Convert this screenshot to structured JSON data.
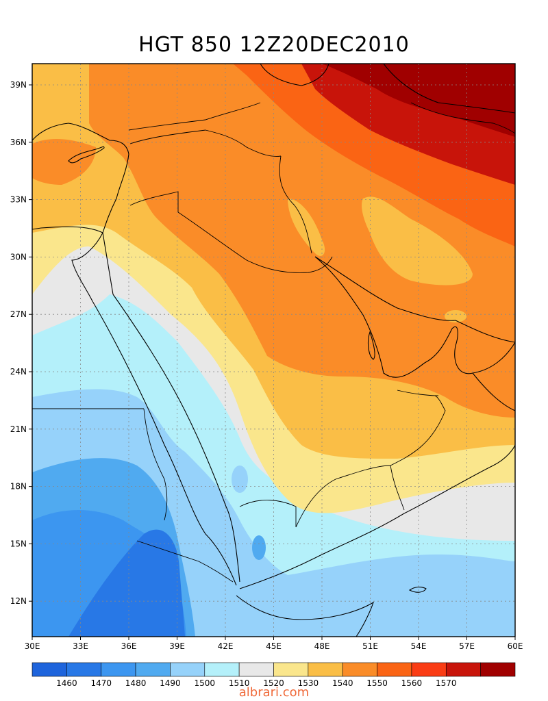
{
  "title": "HGT 850 12Z20DEC2010",
  "lon_labels": [
    "30E",
    "33E",
    "36E",
    "39E",
    "42E",
    "45E",
    "48E",
    "51E",
    "54E",
    "57E",
    "60E"
  ],
  "lat_labels": [
    "39N",
    "36N",
    "33N",
    "30N",
    "27N",
    "24N",
    "21N",
    "18N",
    "15N",
    "12N"
  ],
  "colorbar": {
    "colors": [
      "#1e64dc",
      "#2878e6",
      "#3c96f0",
      "#50aaf0",
      "#96d2fa",
      "#b4f0fa",
      "#e8e8e8",
      "#fae68c",
      "#fabe46",
      "#fa8c28",
      "#fa6414",
      "#fa3c14",
      "#c8140a",
      "#a00000"
    ],
    "labels": [
      "1460",
      "1470",
      "1480",
      "1490",
      "1500",
      "1510",
      "1520",
      "1530",
      "1540",
      "1550",
      "1560",
      "1570"
    ]
  },
  "watermark": "albrari.com"
}
